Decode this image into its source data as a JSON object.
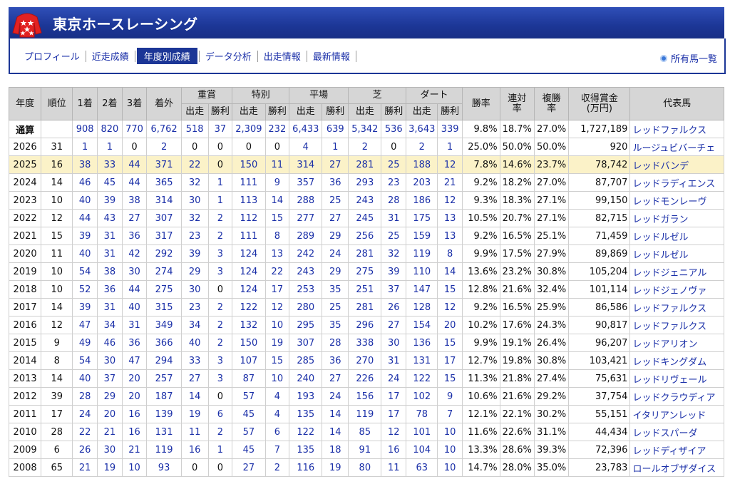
{
  "header": {
    "title": "東京ホースレーシング"
  },
  "nav": {
    "items": [
      "プロフィール",
      "近走成績",
      "年度別成績",
      "データ分析",
      "出走情報",
      "最新情報"
    ],
    "active_index": 2,
    "owned_link": "所有馬一覧"
  },
  "table": {
    "header_top": [
      "年度",
      "順位",
      "1着",
      "2着",
      "3着",
      "着外",
      "重賞",
      "特別",
      "平場",
      "芝",
      "ダート",
      "勝率",
      "連対\n率",
      "複勝\n率",
      "収得賞金\n(万円)",
      "代表馬"
    ],
    "header_sub": [
      "出走",
      "勝利"
    ],
    "rows": [
      [
        "通算",
        "",
        "908",
        "820",
        "770",
        "6,762",
        "518",
        "37",
        "2,309",
        "232",
        "6,433",
        "639",
        "5,342",
        "536",
        "3,643",
        "339",
        "9.8%",
        "18.7%",
        "27.0%",
        "1,727,189",
        "レッドファルクス"
      ],
      [
        "2026",
        "31",
        "1",
        "1",
        "0",
        "2",
        "0",
        "0",
        "0",
        "0",
        "4",
        "1",
        "2",
        "0",
        "2",
        "1",
        "25.0%",
        "50.0%",
        "50.0%",
        "920",
        "ルージュビバーチェ"
      ],
      [
        "2025",
        "16",
        "38",
        "33",
        "44",
        "371",
        "22",
        "0",
        "150",
        "11",
        "314",
        "27",
        "281",
        "25",
        "188",
        "12",
        "7.8%",
        "14.6%",
        "23.7%",
        "78,742",
        "レッドバンデ"
      ],
      [
        "2024",
        "14",
        "46",
        "45",
        "44",
        "365",
        "32",
        "1",
        "111",
        "9",
        "357",
        "36",
        "293",
        "23",
        "203",
        "21",
        "9.2%",
        "18.2%",
        "27.0%",
        "87,707",
        "レッドラディエンス"
      ],
      [
        "2023",
        "10",
        "40",
        "39",
        "38",
        "314",
        "30",
        "1",
        "113",
        "14",
        "288",
        "25",
        "243",
        "28",
        "186",
        "12",
        "9.3%",
        "18.3%",
        "27.1%",
        "99,150",
        "レッドモンレーヴ"
      ],
      [
        "2022",
        "12",
        "44",
        "43",
        "27",
        "307",
        "32",
        "2",
        "112",
        "15",
        "277",
        "27",
        "245",
        "31",
        "175",
        "13",
        "10.5%",
        "20.7%",
        "27.1%",
        "82,715",
        "レッドガラン"
      ],
      [
        "2021",
        "15",
        "39",
        "31",
        "36",
        "317",
        "23",
        "2",
        "111",
        "8",
        "289",
        "29",
        "256",
        "25",
        "159",
        "13",
        "9.2%",
        "16.5%",
        "25.1%",
        "71,459",
        "レッドルゼル"
      ],
      [
        "2020",
        "11",
        "40",
        "31",
        "42",
        "292",
        "39",
        "3",
        "124",
        "13",
        "242",
        "24",
        "281",
        "32",
        "119",
        "8",
        "9.9%",
        "17.5%",
        "27.9%",
        "89,869",
        "レッドルゼル"
      ],
      [
        "2019",
        "10",
        "54",
        "38",
        "30",
        "274",
        "29",
        "3",
        "124",
        "22",
        "243",
        "29",
        "275",
        "39",
        "110",
        "14",
        "13.6%",
        "23.2%",
        "30.8%",
        "105,204",
        "レッドジェニアル"
      ],
      [
        "2018",
        "10",
        "52",
        "36",
        "44",
        "275",
        "30",
        "0",
        "124",
        "17",
        "253",
        "35",
        "251",
        "37",
        "147",
        "15",
        "12.8%",
        "21.6%",
        "32.4%",
        "101,114",
        "レッドジェノヴァ"
      ],
      [
        "2017",
        "14",
        "39",
        "31",
        "40",
        "315",
        "23",
        "2",
        "122",
        "12",
        "280",
        "25",
        "281",
        "26",
        "128",
        "12",
        "9.2%",
        "16.5%",
        "25.9%",
        "86,586",
        "レッドファルクス"
      ],
      [
        "2016",
        "12",
        "47",
        "34",
        "31",
        "349",
        "34",
        "2",
        "132",
        "10",
        "295",
        "35",
        "296",
        "27",
        "154",
        "20",
        "10.2%",
        "17.6%",
        "24.3%",
        "90,817",
        "レッドファルクス"
      ],
      [
        "2015",
        "9",
        "49",
        "46",
        "36",
        "366",
        "40",
        "2",
        "150",
        "19",
        "307",
        "28",
        "338",
        "30",
        "136",
        "15",
        "9.9%",
        "19.1%",
        "26.4%",
        "96,207",
        "レッドアリオン"
      ],
      [
        "2014",
        "8",
        "54",
        "30",
        "47",
        "294",
        "33",
        "3",
        "107",
        "15",
        "285",
        "36",
        "270",
        "31",
        "131",
        "17",
        "12.7%",
        "19.8%",
        "30.8%",
        "103,421",
        "レッドキングダム"
      ],
      [
        "2013",
        "14",
        "40",
        "37",
        "20",
        "257",
        "27",
        "3",
        "87",
        "10",
        "240",
        "27",
        "226",
        "24",
        "122",
        "15",
        "11.3%",
        "21.8%",
        "27.4%",
        "75,631",
        "レッドリヴェール"
      ],
      [
        "2012",
        "39",
        "28",
        "29",
        "20",
        "187",
        "14",
        "0",
        "57",
        "4",
        "193",
        "24",
        "156",
        "17",
        "102",
        "9",
        "10.6%",
        "21.6%",
        "29.2%",
        "37,754",
        "レッドクラウディア"
      ],
      [
        "2011",
        "17",
        "24",
        "20",
        "16",
        "139",
        "19",
        "6",
        "45",
        "4",
        "135",
        "14",
        "119",
        "17",
        "78",
        "7",
        "12.1%",
        "22.1%",
        "30.2%",
        "55,151",
        "イタリアンレッド"
      ],
      [
        "2010",
        "28",
        "22",
        "21",
        "16",
        "131",
        "11",
        "2",
        "57",
        "6",
        "122",
        "14",
        "85",
        "12",
        "101",
        "10",
        "11.6%",
        "22.6%",
        "31.1%",
        "44,434",
        "レッドスパーダ"
      ],
      [
        "2009",
        "6",
        "26",
        "30",
        "21",
        "119",
        "16",
        "1",
        "45",
        "7",
        "135",
        "18",
        "91",
        "16",
        "104",
        "10",
        "13.3%",
        "28.6%",
        "39.3%",
        "72,396",
        "レッドディザイア"
      ],
      [
        "2008",
        "65",
        "21",
        "19",
        "10",
        "93",
        "0",
        "0",
        "27",
        "2",
        "116",
        "19",
        "80",
        "11",
        "63",
        "10",
        "14.7%",
        "28.0%",
        "35.0%",
        "23,783",
        "ロールオブザダイス"
      ]
    ],
    "highlight_year": "2025"
  },
  "colors": {
    "header_bg": "#1c3696",
    "link": "#1a2fa8",
    "highlight_row": "#fbf2c8",
    "table_header_bg": "#d6d6d6"
  }
}
